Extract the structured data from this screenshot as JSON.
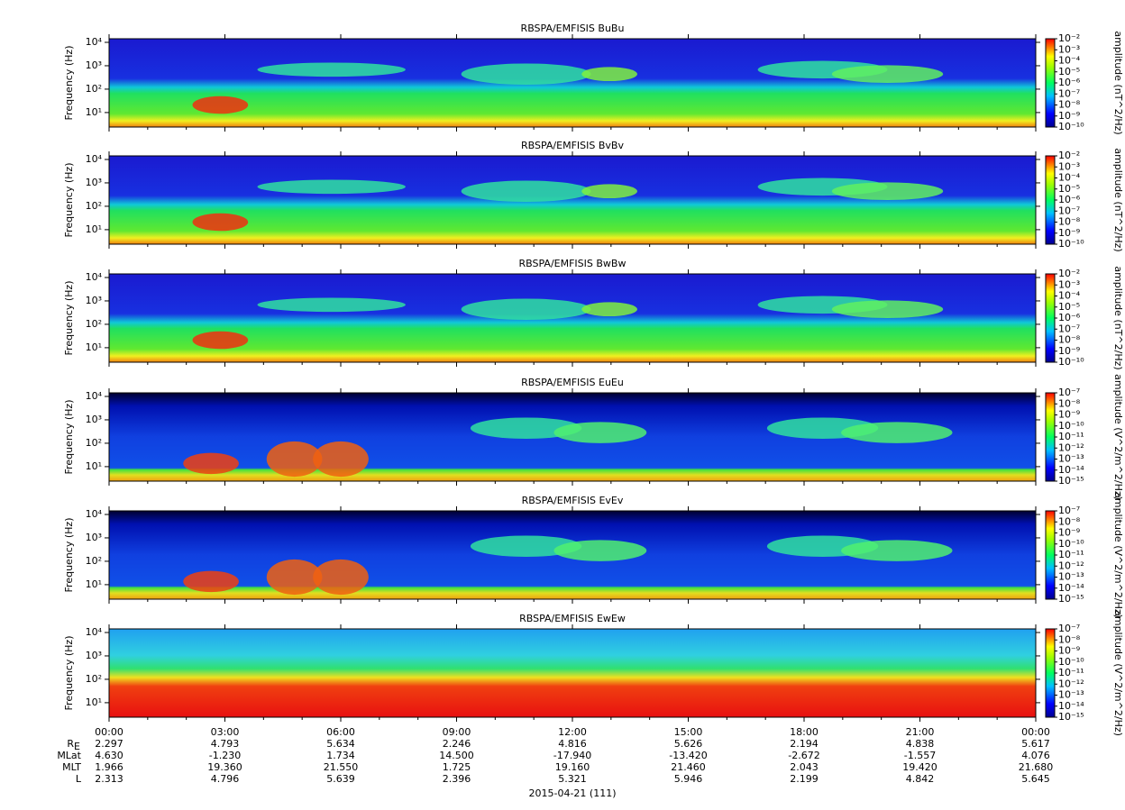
{
  "chart_data": [
    {
      "type": "spectrogram",
      "title": "RBSPA/EMFISIS  BuBu",
      "ylabel": "Frequency (Hz)",
      "log_y": true,
      "ylim": [
        2.4,
        14250
      ],
      "yticks": [
        {
          "value": 10,
          "label": "10¹"
        },
        {
          "value": 100,
          "label": "10²"
        },
        {
          "value": 1000,
          "label": "10³"
        },
        {
          "value": 10000,
          "label": "10⁴"
        }
      ],
      "colorbar": {
        "label": "amplitude (nT^2/Hz)",
        "log": true,
        "lim": [
          1e-10,
          0.01
        ],
        "ticks": [
          {
            "value": 0.01,
            "label": "10⁻²"
          },
          {
            "value": 0.001,
            "label": "10⁻³"
          },
          {
            "value": 0.0001,
            "label": "10⁻⁴"
          },
          {
            "value": 1e-05,
            "label": "10⁻⁵"
          },
          {
            "value": 1e-06,
            "label": "10⁻⁶"
          },
          {
            "value": 1e-07,
            "label": "10⁻⁷"
          },
          {
            "value": 1e-08,
            "label": "10⁻⁸"
          },
          {
            "value": 1e-09,
            "label": "10⁻⁹"
          },
          {
            "value": 1e-10,
            "label": "10⁻¹⁰"
          }
        ]
      }
    },
    {
      "type": "spectrogram",
      "title": "RBSPA/EMFISIS  BvBv",
      "ylabel": "Frequency (Hz)",
      "log_y": true,
      "ylim": [
        2.4,
        14250
      ],
      "yticks": [
        {
          "value": 10,
          "label": "10¹"
        },
        {
          "value": 100,
          "label": "10²"
        },
        {
          "value": 1000,
          "label": "10³"
        },
        {
          "value": 10000,
          "label": "10⁴"
        }
      ],
      "colorbar": {
        "label": "amplitude (nT^2/Hz)",
        "log": true,
        "lim": [
          1e-10,
          0.01
        ],
        "ticks": [
          {
            "value": 0.01,
            "label": "10⁻²"
          },
          {
            "value": 0.001,
            "label": "10⁻³"
          },
          {
            "value": 0.0001,
            "label": "10⁻⁴"
          },
          {
            "value": 1e-05,
            "label": "10⁻⁵"
          },
          {
            "value": 1e-06,
            "label": "10⁻⁶"
          },
          {
            "value": 1e-07,
            "label": "10⁻⁷"
          },
          {
            "value": 1e-08,
            "label": "10⁻⁸"
          },
          {
            "value": 1e-09,
            "label": "10⁻⁹"
          },
          {
            "value": 1e-10,
            "label": "10⁻¹⁰"
          }
        ]
      }
    },
    {
      "type": "spectrogram",
      "title": "RBSPA/EMFISIS  BwBw",
      "ylabel": "Frequency (Hz)",
      "log_y": true,
      "ylim": [
        2.4,
        14250
      ],
      "yticks": [
        {
          "value": 10,
          "label": "10¹"
        },
        {
          "value": 100,
          "label": "10²"
        },
        {
          "value": 1000,
          "label": "10³"
        },
        {
          "value": 10000,
          "label": "10⁴"
        }
      ],
      "colorbar": {
        "label": "amplitude (nT^2/Hz)",
        "log": true,
        "lim": [
          1e-10,
          0.01
        ],
        "ticks": [
          {
            "value": 0.01,
            "label": "10⁻²"
          },
          {
            "value": 0.001,
            "label": "10⁻³"
          },
          {
            "value": 0.0001,
            "label": "10⁻⁴"
          },
          {
            "value": 1e-05,
            "label": "10⁻⁵"
          },
          {
            "value": 1e-06,
            "label": "10⁻⁶"
          },
          {
            "value": 1e-07,
            "label": "10⁻⁷"
          },
          {
            "value": 1e-08,
            "label": "10⁻⁸"
          },
          {
            "value": 1e-09,
            "label": "10⁻⁹"
          },
          {
            "value": 1e-10,
            "label": "10⁻¹⁰"
          }
        ]
      }
    },
    {
      "type": "spectrogram",
      "title": "RBSPA/EMFISIS  EuEu",
      "ylabel": "Frequency (Hz)",
      "log_y": true,
      "ylim": [
        2.4,
        14250
      ],
      "yticks": [
        {
          "value": 10,
          "label": "10¹"
        },
        {
          "value": 100,
          "label": "10²"
        },
        {
          "value": 1000,
          "label": "10³"
        },
        {
          "value": 10000,
          "label": "10⁴"
        }
      ],
      "colorbar": {
        "label": "amplitude (V^2/m^2/Hz)",
        "log": true,
        "lim": [
          1e-15,
          1e-07
        ],
        "ticks": [
          {
            "value": 1e-07,
            "label": "10⁻⁷"
          },
          {
            "value": 1e-08,
            "label": "10⁻⁸"
          },
          {
            "value": 1e-09,
            "label": "10⁻⁹"
          },
          {
            "value": 1e-10,
            "label": "10⁻¹⁰"
          },
          {
            "value": 1e-11,
            "label": "10⁻¹¹"
          },
          {
            "value": 1e-12,
            "label": "10⁻¹²"
          },
          {
            "value": 1e-13,
            "label": "10⁻¹³"
          },
          {
            "value": 1e-14,
            "label": "10⁻¹⁴"
          },
          {
            "value": 1e-15,
            "label": "10⁻¹⁵"
          }
        ]
      }
    },
    {
      "type": "spectrogram",
      "title": "RBSPA/EMFISIS  EvEv",
      "ylabel": "Frequency (Hz)",
      "log_y": true,
      "ylim": [
        2.4,
        14250
      ],
      "yticks": [
        {
          "value": 10,
          "label": "10¹"
        },
        {
          "value": 100,
          "label": "10²"
        },
        {
          "value": 1000,
          "label": "10³"
        },
        {
          "value": 10000,
          "label": "10⁴"
        }
      ],
      "colorbar": {
        "label": "amplitude (V^2/m^2/Hz)",
        "log": true,
        "lim": [
          1e-15,
          1e-07
        ],
        "ticks": [
          {
            "value": 1e-07,
            "label": "10⁻⁷"
          },
          {
            "value": 1e-08,
            "label": "10⁻⁸"
          },
          {
            "value": 1e-09,
            "label": "10⁻⁹"
          },
          {
            "value": 1e-10,
            "label": "10⁻¹⁰"
          },
          {
            "value": 1e-11,
            "label": "10⁻¹¹"
          },
          {
            "value": 1e-12,
            "label": "10⁻¹²"
          },
          {
            "value": 1e-13,
            "label": "10⁻¹³"
          },
          {
            "value": 1e-14,
            "label": "10⁻¹⁴"
          },
          {
            "value": 1e-15,
            "label": "10⁻¹⁵"
          }
        ]
      }
    },
    {
      "type": "spectrogram",
      "title": "RBSPA/EMFISIS  EwEw",
      "ylabel": "Frequency (Hz)",
      "log_y": true,
      "ylim": [
        2.4,
        14250
      ],
      "yticks": [
        {
          "value": 10,
          "label": "10¹"
        },
        {
          "value": 100,
          "label": "10²"
        },
        {
          "value": 1000,
          "label": "10³"
        },
        {
          "value": 10000,
          "label": "10⁴"
        }
      ],
      "colorbar": {
        "label": "amplitude (V^2/m^2/Hz)",
        "log": true,
        "lim": [
          1e-15,
          1e-07
        ],
        "ticks": [
          {
            "value": 1e-07,
            "label": "10⁻⁷"
          },
          {
            "value": 1e-08,
            "label": "10⁻⁸"
          },
          {
            "value": 1e-09,
            "label": "10⁻⁹"
          },
          {
            "value": 1e-10,
            "label": "10⁻¹⁰"
          },
          {
            "value": 1e-11,
            "label": "10⁻¹¹"
          },
          {
            "value": 1e-12,
            "label": "10⁻¹²"
          },
          {
            "value": 1e-13,
            "label": "10⁻¹³"
          },
          {
            "value": 1e-14,
            "label": "10⁻¹⁴"
          },
          {
            "value": 1e-15,
            "label": "10⁻¹⁵"
          }
        ]
      }
    }
  ],
  "x_axis": {
    "xlim": [
      0,
      24
    ],
    "xticks": [
      {
        "value": 0,
        "label": "00:00"
      },
      {
        "value": 3,
        "label": "03:00"
      },
      {
        "value": 6,
        "label": "06:00"
      },
      {
        "value": 9,
        "label": "09:00"
      },
      {
        "value": 12,
        "label": "12:00"
      },
      {
        "value": 15,
        "label": "15:00"
      },
      {
        "value": 18,
        "label": "18:00"
      },
      {
        "value": 21,
        "label": "21:00"
      },
      {
        "value": 24,
        "label": "00:00"
      }
    ],
    "ephemeris": [
      {
        "label": "R",
        "subscript": "E",
        "values": [
          "2.297",
          "4.793",
          "5.634",
          "2.246",
          "4.816",
          "5.626",
          "2.194",
          "4.838",
          "5.617"
        ]
      },
      {
        "label": "MLat",
        "values": [
          "4.630",
          "-1.230",
          "1.734",
          "14.500",
          "-17.940",
          "-13.420",
          "-2.672",
          "-1.557",
          "4.076"
        ]
      },
      {
        "label": "MLT",
        "values": [
          "1.966",
          "19.360",
          "21.550",
          "1.725",
          "19.160",
          "21.460",
          "2.043",
          "19.420",
          "21.680"
        ]
      },
      {
        "label": "L",
        "values": [
          "2.313",
          "4.796",
          "5.639",
          "2.396",
          "5.321",
          "5.946",
          "2.199",
          "4.842",
          "5.645"
        ]
      }
    ],
    "date": "2015-04-21 (111)"
  }
}
